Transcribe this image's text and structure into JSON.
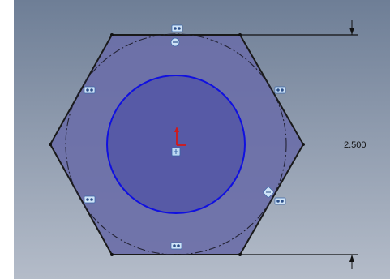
{
  "viewport": {
    "background_top": "#6e7e96",
    "background_bottom": "#b4bcc9"
  },
  "sketch": {
    "hexagon_fill": "#6b6fa8",
    "inner_circle_fill": "#575aa6",
    "line_color": "#1a1a1a",
    "selected_color": "#1010e0",
    "origin_color": "#d21919",
    "relation_icon": "coincident-relation-icon",
    "center_icon": "fixed-point-icon"
  },
  "dimension": {
    "value": "2.500"
  }
}
